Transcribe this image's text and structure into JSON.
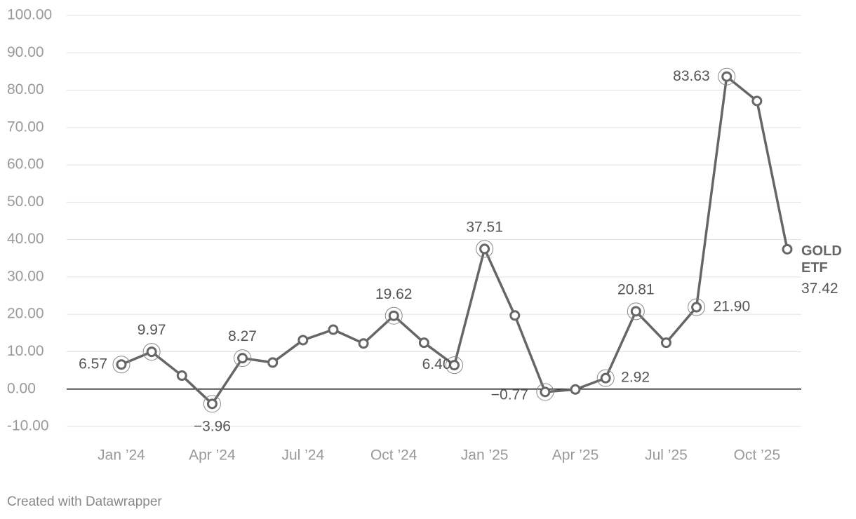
{
  "chart_data": {
    "type": "line",
    "categories": [
      "Jan ’24",
      null,
      null,
      "Apr ’24",
      null,
      null,
      "Jul ’24",
      null,
      null,
      "Oct ’24",
      null,
      null,
      "Jan ’25",
      null,
      null,
      "Apr ’25",
      null,
      null,
      "Jul ’25",
      null,
      null,
      "Oct ’25",
      null
    ],
    "series": [
      {
        "name": "GOLD ETF",
        "color": "#666666",
        "values": [
          6.57,
          9.97,
          3.6,
          -3.96,
          8.27,
          7.1,
          13.1,
          15.9,
          12.2,
          19.62,
          12.4,
          6.4,
          37.51,
          19.7,
          -0.77,
          -0.1,
          2.92,
          20.81,
          12.4,
          21.9,
          83.63,
          77.1,
          37.42
        ],
        "value_labels": [
          "6.57",
          "9.97",
          null,
          "−3.96",
          "8.27",
          null,
          null,
          null,
          null,
          "19.62",
          null,
          "6.40",
          "37.51",
          null,
          "−0.77",
          null,
          "2.92",
          "20.81",
          null,
          "21.90",
          "83.63",
          null,
          "37.42"
        ]
      }
    ],
    "ylim": [
      -10,
      100
    ],
    "yticks": [
      {
        "value": -10,
        "label": "-10.00"
      },
      {
        "value": 0,
        "label": "0.00"
      },
      {
        "value": 10,
        "label": "10.00"
      },
      {
        "value": 20,
        "label": "20.00"
      },
      {
        "value": 30,
        "label": "30.00"
      },
      {
        "value": 40,
        "label": "40.00"
      },
      {
        "value": 50,
        "label": "50.00"
      },
      {
        "value": 60,
        "label": "60.00"
      },
      {
        "value": 70,
        "label": "70.00"
      },
      {
        "value": 80,
        "label": "80.00"
      },
      {
        "value": 90,
        "label": "90.00"
      },
      {
        "value": 100,
        "label": "100.00"
      }
    ],
    "grid": true,
    "credit": "Created with Datawrapper"
  }
}
